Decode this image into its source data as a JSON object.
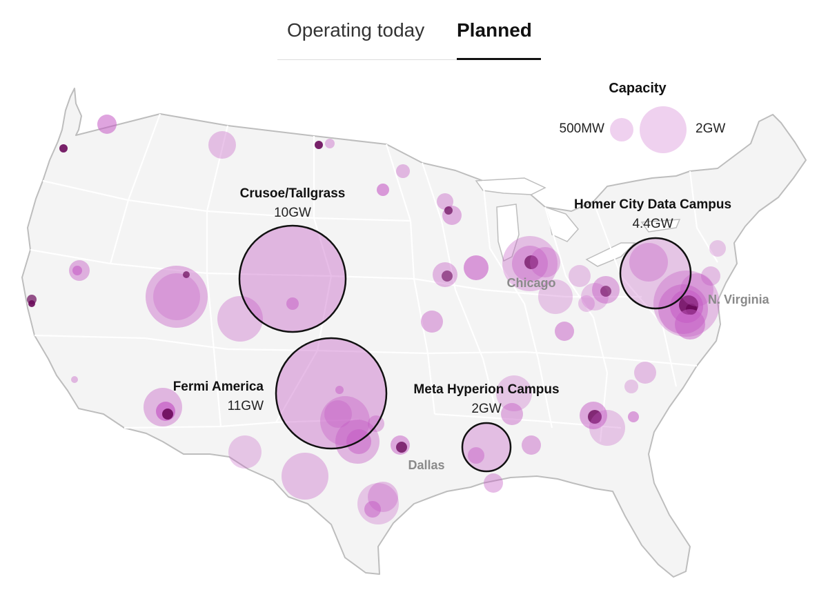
{
  "tabs": {
    "operating": "Operating today",
    "planned": "Planned",
    "active": "planned"
  },
  "legend": {
    "title": "Capacity",
    "small_label": "500MW",
    "large_label": "2GW",
    "bubble_color": "#c45ac4"
  },
  "colors": {
    "land": "#f4f4f4",
    "state_border": "#ffffff",
    "outline": "#bdbdbd",
    "bubble": "#c45ac4",
    "bubble_dark": "#6a0a5a",
    "callout_ring": "#111111"
  },
  "callouts": [
    {
      "name": "Crusoe/Tallgrass",
      "value": "10GW"
    },
    {
      "name": "Homer City Data Campus",
      "value": "4.4GW"
    },
    {
      "name": "Fermi America",
      "value": "11GW"
    },
    {
      "name": "Meta Hyperion Campus",
      "value": "2GW"
    }
  ],
  "cities": {
    "chicago": "Chicago",
    "n_virginia": "N. Virginia",
    "dallas": "Dallas"
  }
}
